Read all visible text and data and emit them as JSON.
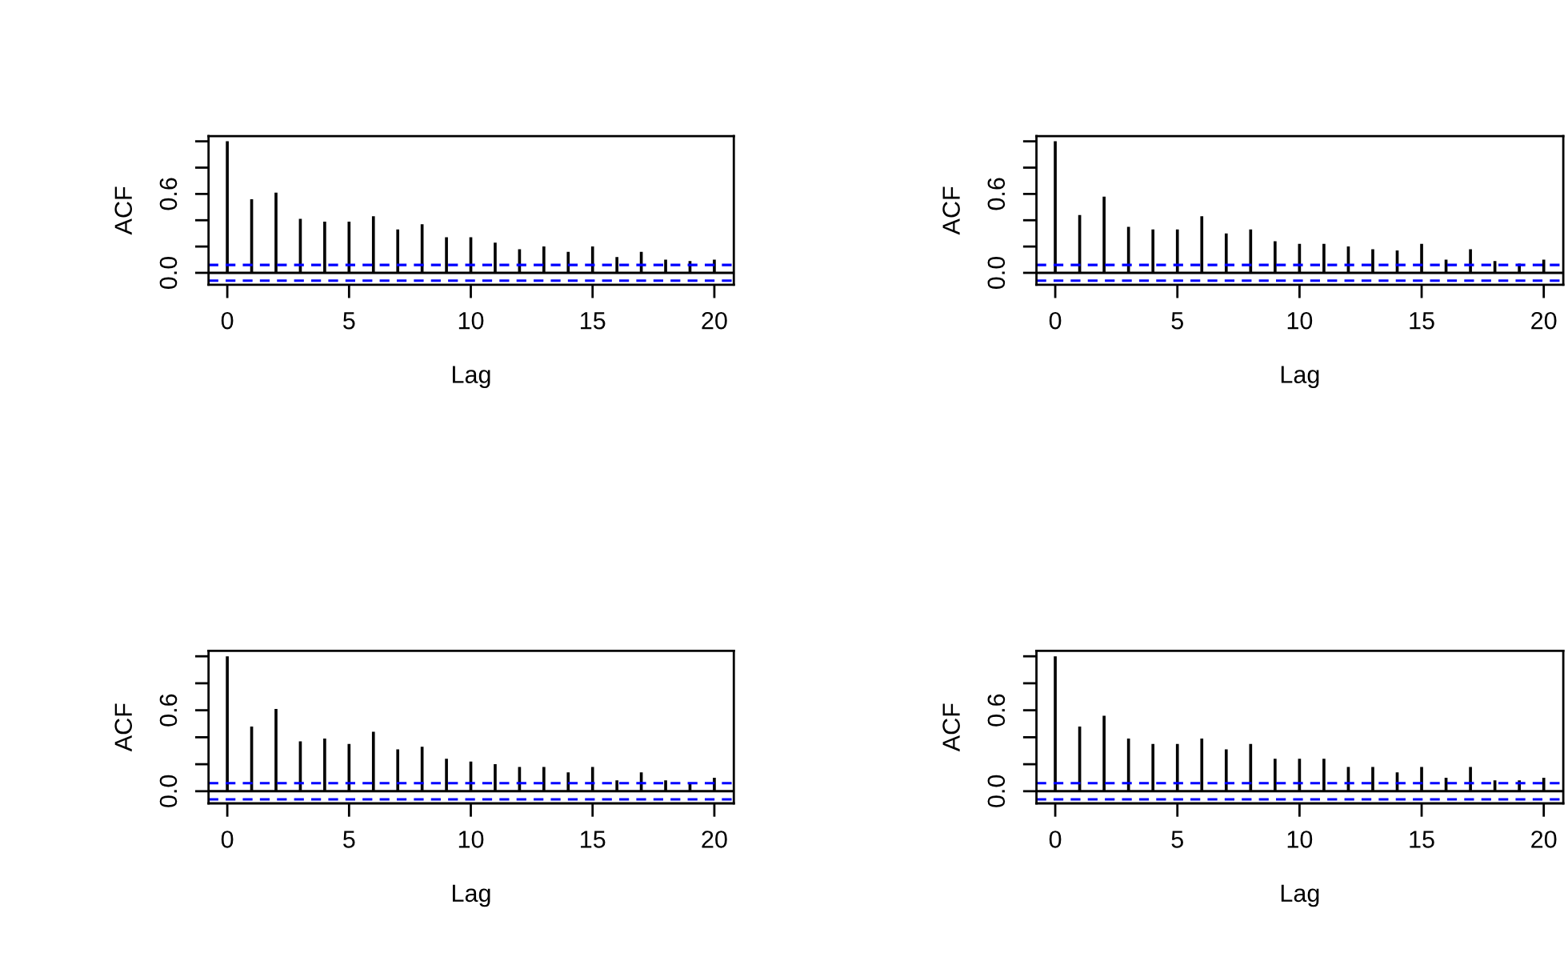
{
  "chart_data": [
    {
      "type": "bar",
      "xlabel": "Lag",
      "ylabel": "ACF",
      "x": [
        0,
        1,
        2,
        3,
        4,
        5,
        6,
        7,
        8,
        9,
        10,
        11,
        12,
        13,
        14,
        15,
        16,
        17,
        18,
        19,
        20
      ],
      "color": "#000000",
      "values": [
        1.0,
        0.56,
        0.61,
        0.41,
        0.39,
        0.39,
        0.43,
        0.33,
        0.37,
        0.27,
        0.27,
        0.23,
        0.18,
        0.2,
        0.16,
        0.2,
        0.12,
        0.16,
        0.1,
        0.09,
        0.1
      ],
      "xlim": [
        -0.77,
        20.8
      ],
      "xticks": [
        0,
        5,
        10,
        15,
        20
      ],
      "ylim": [
        -0.09,
        1.04
      ],
      "yticks": [
        {
          "value": 0.0,
          "label": "0.0"
        },
        {
          "value": 0.2,
          "label": null
        },
        {
          "value": 0.4,
          "label": null
        },
        {
          "value": 0.6,
          "label": "0.6"
        },
        {
          "value": 0.8,
          "label": null
        },
        {
          "value": 1.0,
          "label": null
        }
      ],
      "ref_lines": [
        {
          "axis": "y",
          "value": 0,
          "color": "#000000",
          "line_style": "solid"
        },
        {
          "axis": "y",
          "value": 0.06,
          "color": "#0000ff",
          "line_style": "dashed"
        },
        {
          "axis": "y",
          "value": -0.06,
          "color": "#0000ff",
          "line_style": "dashed"
        }
      ],
      "grid": false,
      "legend": false
    },
    {
      "type": "bar",
      "xlabel": "Lag",
      "ylabel": "ACF",
      "x": [
        0,
        1,
        2,
        3,
        4,
        5,
        6,
        7,
        8,
        9,
        10,
        11,
        12,
        13,
        14,
        15,
        16,
        17,
        18,
        19,
        20
      ],
      "color": "#000000",
      "values": [
        1.0,
        0.44,
        0.58,
        0.35,
        0.33,
        0.33,
        0.43,
        0.3,
        0.33,
        0.24,
        0.22,
        0.22,
        0.2,
        0.18,
        0.17,
        0.22,
        0.1,
        0.18,
        0.09,
        0.07,
        0.1
      ],
      "xlim": [
        -0.77,
        20.8
      ],
      "xticks": [
        0,
        5,
        10,
        15,
        20
      ],
      "ylim": [
        -0.09,
        1.04
      ],
      "yticks": [
        {
          "value": 0.0,
          "label": "0.0"
        },
        {
          "value": 0.2,
          "label": null
        },
        {
          "value": 0.4,
          "label": null
        },
        {
          "value": 0.6,
          "label": "0.6"
        },
        {
          "value": 0.8,
          "label": null
        },
        {
          "value": 1.0,
          "label": null
        }
      ],
      "ref_lines": [
        {
          "axis": "y",
          "value": 0,
          "color": "#000000",
          "line_style": "solid"
        },
        {
          "axis": "y",
          "value": 0.06,
          "color": "#0000ff",
          "line_style": "dashed"
        },
        {
          "axis": "y",
          "value": -0.06,
          "color": "#0000ff",
          "line_style": "dashed"
        }
      ],
      "grid": false,
      "legend": false
    },
    {
      "type": "bar",
      "xlabel": "Lag",
      "ylabel": "ACF",
      "x": [
        0,
        1,
        2,
        3,
        4,
        5,
        6,
        7,
        8,
        9,
        10,
        11,
        12,
        13,
        14,
        15,
        16,
        17,
        18,
        19,
        20
      ],
      "color": "#000000",
      "values": [
        1.0,
        0.48,
        0.61,
        0.37,
        0.39,
        0.35,
        0.44,
        0.31,
        0.33,
        0.24,
        0.22,
        0.2,
        0.18,
        0.18,
        0.14,
        0.18,
        0.08,
        0.14,
        0.08,
        0.06,
        0.1
      ],
      "xlim": [
        -0.77,
        20.8
      ],
      "xticks": [
        0,
        5,
        10,
        15,
        20
      ],
      "ylim": [
        -0.09,
        1.04
      ],
      "yticks": [
        {
          "value": 0.0,
          "label": "0.0"
        },
        {
          "value": 0.2,
          "label": null
        },
        {
          "value": 0.4,
          "label": null
        },
        {
          "value": 0.6,
          "label": "0.6"
        },
        {
          "value": 0.8,
          "label": null
        },
        {
          "value": 1.0,
          "label": null
        }
      ],
      "ref_lines": [
        {
          "axis": "y",
          "value": 0,
          "color": "#000000",
          "line_style": "solid"
        },
        {
          "axis": "y",
          "value": 0.06,
          "color": "#0000ff",
          "line_style": "dashed"
        },
        {
          "axis": "y",
          "value": -0.06,
          "color": "#0000ff",
          "line_style": "dashed"
        }
      ],
      "grid": false,
      "legend": false
    },
    {
      "type": "bar",
      "xlabel": "Lag",
      "ylabel": "ACF",
      "x": [
        0,
        1,
        2,
        3,
        4,
        5,
        6,
        7,
        8,
        9,
        10,
        11,
        12,
        13,
        14,
        15,
        16,
        17,
        18,
        19,
        20
      ],
      "color": "#000000",
      "values": [
        1.0,
        0.48,
        0.56,
        0.39,
        0.35,
        0.35,
        0.39,
        0.31,
        0.35,
        0.24,
        0.24,
        0.24,
        0.18,
        0.18,
        0.14,
        0.18,
        0.1,
        0.18,
        0.08,
        0.08,
        0.1
      ],
      "xlim": [
        -0.77,
        20.8
      ],
      "xticks": [
        0,
        5,
        10,
        15,
        20
      ],
      "ylim": [
        -0.09,
        1.04
      ],
      "yticks": [
        {
          "value": 0.0,
          "label": "0.0"
        },
        {
          "value": 0.2,
          "label": null
        },
        {
          "value": 0.4,
          "label": null
        },
        {
          "value": 0.6,
          "label": "0.6"
        },
        {
          "value": 0.8,
          "label": null
        },
        {
          "value": 1.0,
          "label": null
        }
      ],
      "ref_lines": [
        {
          "axis": "y",
          "value": 0,
          "color": "#000000",
          "line_style": "solid"
        },
        {
          "axis": "y",
          "value": 0.06,
          "color": "#0000ff",
          "line_style": "dashed"
        },
        {
          "axis": "y",
          "value": -0.06,
          "color": "#0000ff",
          "line_style": "dashed"
        }
      ],
      "grid": false,
      "legend": false
    }
  ]
}
